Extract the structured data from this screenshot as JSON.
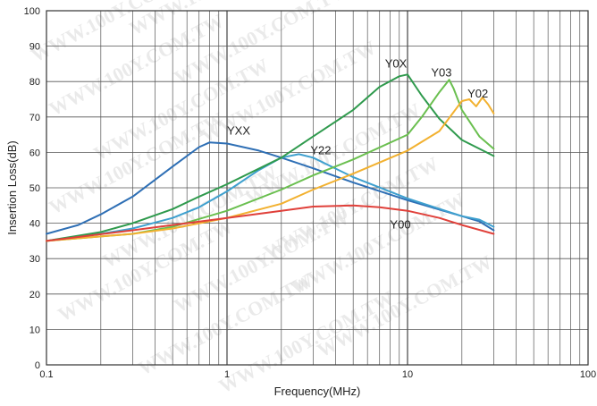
{
  "chart_data": {
    "type": "line",
    "xlabel": "Frequency(MHz)",
    "ylabel": "Insertion Loss(dB)",
    "x_scale": "log",
    "xlim": [
      0.1,
      100
    ],
    "ylim": [
      0,
      100
    ],
    "x_ticks": [
      0.1,
      1,
      10,
      100
    ],
    "x_tick_labels": [
      "0.1",
      "1",
      "10",
      "100"
    ],
    "y_ticks": [
      0,
      10,
      20,
      30,
      40,
      50,
      60,
      70,
      80,
      90,
      100
    ],
    "y_tick_labels": [
      "0",
      "10",
      "20",
      "30",
      "40",
      "50",
      "60",
      "70",
      "80",
      "90",
      "100"
    ],
    "grid": true,
    "watermark": "WWW.100Y.COM.TW",
    "series": [
      {
        "name": "YXX",
        "color": "#2e6fb5",
        "x": [
          0.1,
          0.15,
          0.2,
          0.3,
          0.5,
          0.7,
          0.8,
          1.0,
          1.5,
          2,
          3,
          5,
          10,
          20,
          25,
          30
        ],
        "y": [
          37,
          39.5,
          42.5,
          47.5,
          56,
          61.5,
          62.8,
          62.5,
          60.5,
          58.5,
          55.5,
          51.5,
          46.5,
          42,
          40.5,
          38
        ]
      },
      {
        "name": "Y22",
        "color": "#3ea0cf",
        "x": [
          0.1,
          0.2,
          0.3,
          0.5,
          0.7,
          1,
          1.5,
          2,
          2.5,
          3,
          5,
          10,
          20,
          25,
          30
        ],
        "y": [
          35,
          37,
          38.5,
          41.5,
          44.5,
          49,
          55,
          58.5,
          59.5,
          58.5,
          53,
          47,
          42,
          41,
          39
        ]
      },
      {
        "name": "Y0X",
        "color": "#2f9a4d",
        "x": [
          0.1,
          0.2,
          0.3,
          0.5,
          0.7,
          1,
          2,
          3,
          5,
          7,
          9,
          10,
          12,
          15,
          20,
          30
        ],
        "y": [
          35,
          37.5,
          40,
          44,
          47.5,
          51,
          58.5,
          64.5,
          72,
          78.5,
          81.5,
          82,
          76,
          69.5,
          63.5,
          59
        ]
      },
      {
        "name": "Y03",
        "color": "#6abf4f",
        "x": [
          0.1,
          0.3,
          0.5,
          1,
          2,
          3,
          5,
          10,
          12,
          15,
          17,
          18,
          20,
          25,
          30
        ],
        "y": [
          35,
          37,
          39,
          43.5,
          49.5,
          53.5,
          58,
          65,
          70,
          77,
          80.5,
          78,
          72,
          64.5,
          61
        ]
      },
      {
        "name": "Y02",
        "color": "#f2b130",
        "x": [
          0.1,
          0.3,
          0.5,
          1,
          2,
          3,
          5,
          10,
          15,
          20,
          22,
          24,
          26,
          28,
          30
        ],
        "y": [
          35,
          37,
          38.5,
          41.5,
          45.5,
          49.5,
          54,
          60.5,
          66,
          74.5,
          75,
          73,
          75.5,
          73.5,
          71
        ]
      },
      {
        "name": "Y00",
        "color": "#e0403a",
        "x": [
          0.1,
          0.3,
          0.5,
          1,
          2,
          3,
          5,
          7,
          10,
          15,
          20,
          30
        ],
        "y": [
          35,
          38,
          39.5,
          41.5,
          43.5,
          44.7,
          45,
          44.5,
          43.5,
          41.5,
          39.5,
          37
        ]
      }
    ],
    "series_labels": [
      {
        "series": "YXX",
        "text": "YXX",
        "at_x": 1.0,
        "at_y": 65
      },
      {
        "series": "Y22",
        "text": "Y22",
        "at_x": 2.9,
        "at_y": 59.5
      },
      {
        "series": "Y0X",
        "text": "Y0X",
        "at_x": 7.5,
        "at_y": 84
      },
      {
        "series": "Y03",
        "text": "Y03",
        "at_x": 13.5,
        "at_y": 81.5
      },
      {
        "series": "Y02",
        "text": "Y02",
        "at_x": 21.5,
        "at_y": 75.5
      },
      {
        "series": "Y00",
        "text": "Y00",
        "at_x": 8.0,
        "at_y": 38.5
      }
    ]
  }
}
